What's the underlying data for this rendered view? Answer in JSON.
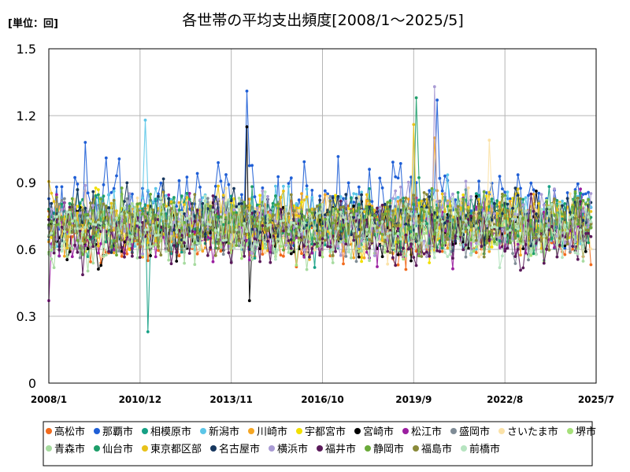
{
  "chart_data": {
    "type": "line",
    "title": "各世帯の平均支出頻度[2008/1～2025/5]",
    "unit_label": "[単位：回]",
    "x_start": "2008/1",
    "x_end": "2025/7",
    "x_tick_labels": [
      "2008/1",
      "2010/12",
      "2013/11",
      "2016/10",
      "2019/9",
      "2022/8",
      "2025/7"
    ],
    "y_tick_labels": [
      "0",
      "0.3",
      "0.6",
      "0.9",
      "1.2",
      "1.5"
    ],
    "ylim": [
      0,
      1.5
    ],
    "grid": true,
    "legend_position": "bottom",
    "series": [
      {
        "name": "高松市",
        "color": "#f26b1d",
        "base": 0.66,
        "amp": 0.1,
        "seed": 11,
        "spikes": []
      },
      {
        "name": "那覇市",
        "color": "#1f5fd6",
        "base": 0.82,
        "amp": 0.13,
        "seed": 23,
        "spikes": [
          [
            "2014/5",
            1.31
          ],
          [
            "2020/6",
            1.27
          ],
          [
            "2009/3",
            1.08
          ]
        ]
      },
      {
        "name": "相模原市",
        "color": "#16a085",
        "base": 0.72,
        "amp": 0.11,
        "seed": 37,
        "spikes": [
          [
            "2011/3",
            0.23
          ]
        ]
      },
      {
        "name": "新潟市",
        "color": "#5cc6e8",
        "base": 0.74,
        "amp": 0.11,
        "seed": 41,
        "spikes": [
          [
            "2011/2",
            1.18
          ]
        ]
      },
      {
        "name": "川崎市",
        "color": "#f5a623",
        "base": 0.7,
        "amp": 0.1,
        "seed": 53,
        "spikes": [
          [
            "2020/5",
            1.1
          ]
        ]
      },
      {
        "name": "宇都宮市",
        "color": "#f2e000",
        "base": 0.71,
        "amp": 0.1,
        "seed": 61,
        "spikes": []
      },
      {
        "name": "宮崎市",
        "color": "#000000",
        "base": 0.69,
        "amp": 0.1,
        "seed": 71,
        "spikes": [
          [
            "2014/5",
            1.15
          ],
          [
            "2014/6",
            0.37
          ]
        ]
      },
      {
        "name": "松江市",
        "color": "#9b1fa0",
        "base": 0.68,
        "amp": 0.11,
        "seed": 83,
        "spikes": [
          [
            "2008/1",
            0.37
          ]
        ]
      },
      {
        "name": "盛岡市",
        "color": "#7f8c96",
        "base": 0.7,
        "amp": 0.1,
        "seed": 89,
        "spikes": []
      },
      {
        "name": "さいたま市",
        "color": "#fbe2a8",
        "base": 0.72,
        "amp": 0.1,
        "seed": 97,
        "spikes": [
          [
            "2022/2",
            1.09
          ]
        ]
      },
      {
        "name": "堺市",
        "color": "#a6e07a",
        "base": 0.69,
        "amp": 0.1,
        "seed": 101,
        "spikes": []
      },
      {
        "name": "青森市",
        "color": "#a7dba0",
        "base": 0.67,
        "amp": 0.1,
        "seed": 107,
        "spikes": []
      },
      {
        "name": "仙台市",
        "color": "#1e9e6a",
        "base": 0.73,
        "amp": 0.1,
        "seed": 113,
        "spikes": [
          [
            "2019/10",
            1.28
          ]
        ]
      },
      {
        "name": "東京都区部",
        "color": "#e8c21a",
        "base": 0.74,
        "amp": 0.1,
        "seed": 127,
        "spikes": [
          [
            "2019/9",
            1.16
          ]
        ]
      },
      {
        "name": "名古屋市",
        "color": "#17375e",
        "base": 0.74,
        "amp": 0.1,
        "seed": 131,
        "spikes": []
      },
      {
        "name": "横浜市",
        "color": "#a99bd4",
        "base": 0.73,
        "amp": 0.11,
        "seed": 137,
        "spikes": [
          [
            "2020/5",
            1.33
          ]
        ]
      },
      {
        "name": "福井市",
        "color": "#5a1a5a",
        "base": 0.67,
        "amp": 0.11,
        "seed": 139,
        "spikes": []
      },
      {
        "name": "静岡市",
        "color": "#6aaa3a",
        "base": 0.72,
        "amp": 0.1,
        "seed": 149,
        "spikes": []
      },
      {
        "name": "福島市",
        "color": "#8a8a3a",
        "base": 0.71,
        "amp": 0.1,
        "seed": 151,
        "spikes": []
      },
      {
        "name": "前橋市",
        "color": "#b6e4c0",
        "base": 0.7,
        "amp": 0.1,
        "seed": 157,
        "spikes": []
      }
    ]
  }
}
